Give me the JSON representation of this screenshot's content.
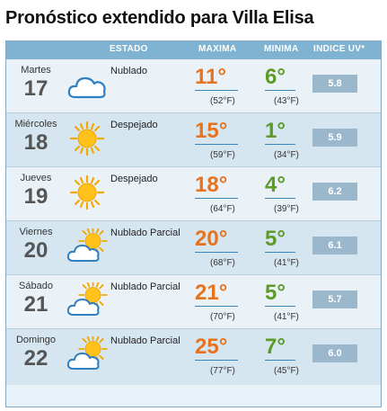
{
  "title": "Pronóstico extendido para Villa Elisa",
  "headers": {
    "estado": "ESTADO",
    "maxima": "MAXIMA",
    "minima": "MINIMA",
    "uv": "INDICE UV*"
  },
  "colors": {
    "header": "#80b2d2",
    "max_temp": "#e8731e",
    "min_temp": "#5c9b25",
    "uv_box": "#9bb7cb"
  },
  "days": [
    {
      "day": "Martes",
      "date": "17",
      "icon": "cloud-icon",
      "state": "Nublado",
      "max": "11°",
      "max_f": "(52°F)",
      "min": "6°",
      "min_f": "(43°F)",
      "uv": "5.8"
    },
    {
      "day": "Miércoles",
      "date": "18",
      "icon": "sun-icon",
      "state": "Despejado",
      "max": "15°",
      "max_f": "(59°F)",
      "min": "1°",
      "min_f": "(34°F)",
      "uv": "5.9"
    },
    {
      "day": "Jueves",
      "date": "19",
      "icon": "sun-icon",
      "state": "Despejado",
      "max": "18°",
      "max_f": "(64°F)",
      "min": "4°",
      "min_f": "(39°F)",
      "uv": "6.2"
    },
    {
      "day": "Viernes",
      "date": "20",
      "icon": "partly-cloudy-icon",
      "state": "Nublado Parcial",
      "max": "20°",
      "max_f": "(68°F)",
      "min": "5°",
      "min_f": "(41°F)",
      "uv": "6.1"
    },
    {
      "day": "Sábado",
      "date": "21",
      "icon": "partly-cloudy-icon",
      "state": "Nublado Parcial",
      "max": "21°",
      "max_f": "(70°F)",
      "min": "5°",
      "min_f": "(41°F)",
      "uv": "5.7"
    },
    {
      "day": "Domingo",
      "date": "22",
      "icon": "partly-cloudy-icon",
      "state": "Nublado Parcial",
      "max": "25°",
      "max_f": "(77°F)",
      "min": "7°",
      "min_f": "(45°F)",
      "uv": "6.0"
    }
  ]
}
